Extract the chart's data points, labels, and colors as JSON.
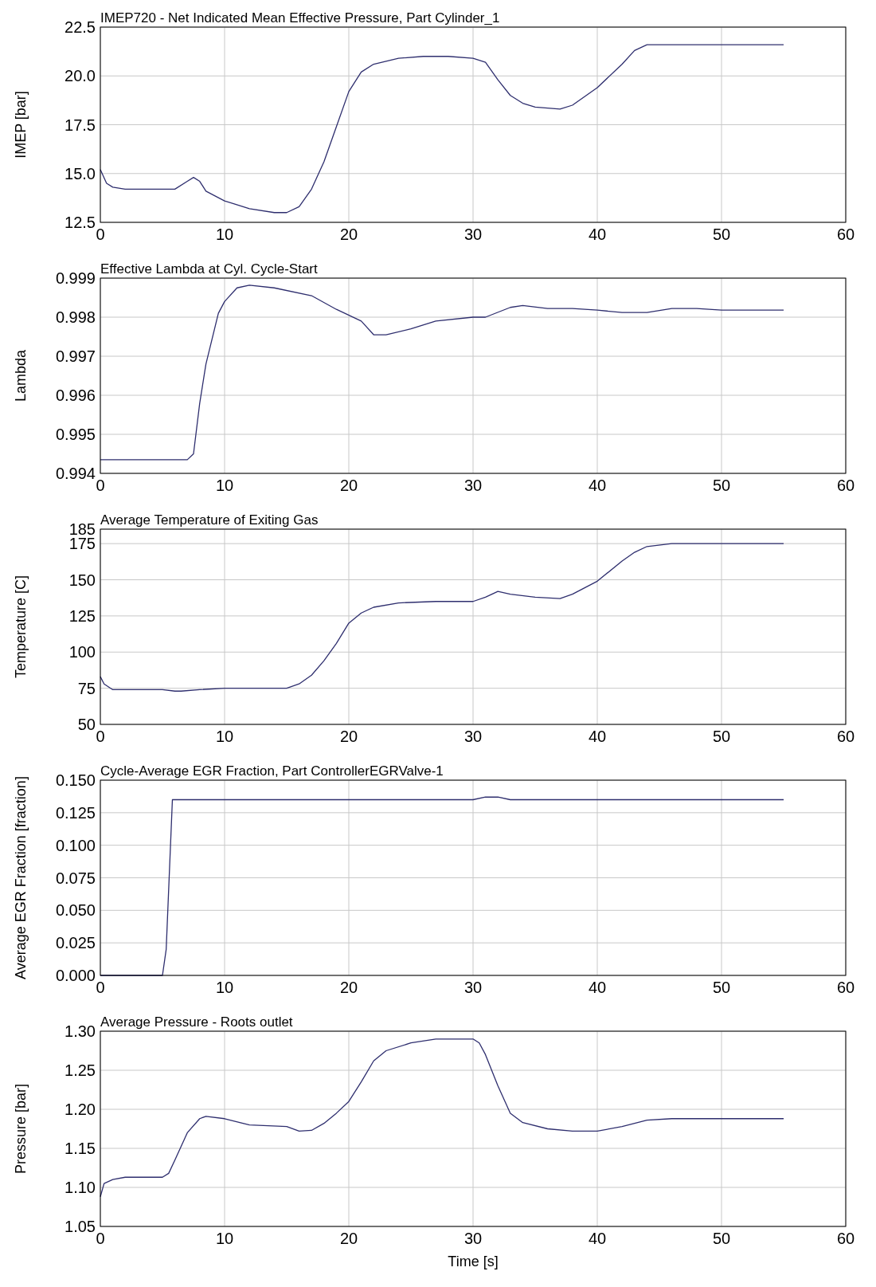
{
  "chart_data": [
    {
      "type": "line",
      "title": "IMEP720 - Net Indicated Mean Effective Pressure, Part Cylinder_1",
      "ylabel": "IMEP [bar]",
      "xlim": [
        0,
        60
      ],
      "xticks": [
        0,
        10,
        20,
        30,
        40,
        50,
        60
      ],
      "ylim": [
        12.5,
        22.5
      ],
      "yticks": [
        {
          "value": 12.5,
          "label": "12.5"
        },
        {
          "value": 15,
          "label": "15.0"
        },
        {
          "value": 17.5,
          "label": "17.5"
        },
        {
          "value": 20,
          "label": "20.0"
        },
        {
          "value": 22.5,
          "label": "22.5"
        }
      ],
      "grid": true,
      "series": [
        {
          "color": "#2e2e6e",
          "x": [
            0,
            0.5,
            1,
            2,
            5,
            6,
            7,
            7.5,
            8,
            8.5,
            10,
            12,
            14,
            15,
            16,
            17,
            18,
            19,
            20,
            21,
            22,
            24,
            26,
            28,
            30,
            31,
            32,
            33,
            34,
            35,
            37,
            38,
            40,
            42,
            43,
            44,
            46,
            50,
            55
          ],
          "values": [
            15.2,
            14.5,
            14.3,
            14.2,
            14.2,
            14.2,
            14.6,
            14.8,
            14.6,
            14.1,
            13.6,
            13.2,
            13.0,
            13.0,
            13.3,
            14.2,
            15.6,
            17.4,
            19.2,
            20.2,
            20.6,
            20.9,
            21.0,
            21.0,
            20.9,
            20.7,
            19.8,
            19.0,
            18.6,
            18.4,
            18.3,
            18.5,
            19.4,
            20.6,
            21.3,
            21.6,
            21.6,
            21.6,
            21.6
          ]
        }
      ]
    },
    {
      "type": "line",
      "title": "Effective Lambda at Cyl. Cycle-Start",
      "ylabel": "Lambda",
      "xlim": [
        0,
        60
      ],
      "xticks": [
        0,
        10,
        20,
        30,
        40,
        50,
        60
      ],
      "ylim": [
        0.994,
        0.999
      ],
      "yticks": [
        0.994,
        0.995,
        0.996,
        0.997,
        0.998,
        0.999
      ],
      "grid": true,
      "series": [
        {
          "color": "#2e2e6e",
          "x": [
            0,
            7,
            7.5,
            8,
            8.5,
            9.5,
            10,
            11,
            12,
            14,
            17,
            19,
            21,
            22,
            23,
            25,
            27,
            30,
            31,
            33,
            34,
            36,
            38,
            40,
            42,
            44,
            46,
            48,
            50,
            55
          ],
          "values": [
            0.99435,
            0.99435,
            0.9945,
            0.9958,
            0.9968,
            0.9981,
            0.9984,
            0.99875,
            0.99882,
            0.99875,
            0.99855,
            0.9982,
            0.9979,
            0.99755,
            0.99755,
            0.9977,
            0.9979,
            0.998,
            0.998,
            0.99825,
            0.9983,
            0.99822,
            0.99822,
            0.99818,
            0.99812,
            0.99812,
            0.99822,
            0.99822,
            0.99818,
            0.99818
          ]
        }
      ]
    },
    {
      "type": "line",
      "title": "Average Temperature of Exiting Gas",
      "ylabel": "Temperature [C]",
      "xlim": [
        0,
        60
      ],
      "xticks": [
        0,
        10,
        20,
        30,
        40,
        50,
        60
      ],
      "ylim": [
        50,
        185
      ],
      "yticks": [
        50,
        75,
        100,
        125,
        150,
        175,
        185
      ],
      "grid": true,
      "series": [
        {
          "color": "#2e2e6e",
          "x": [
            0,
            0.3,
            1,
            5,
            6,
            6.5,
            8,
            10,
            15,
            16,
            17,
            18,
            19,
            20,
            21,
            22,
            24,
            27,
            30,
            31,
            32,
            33,
            35,
            37,
            38,
            40,
            42,
            43,
            44,
            46,
            55
          ],
          "values": [
            83,
            78,
            74,
            74,
            73,
            73,
            74,
            75,
            75,
            78,
            84,
            94,
            106,
            120,
            127,
            131,
            134,
            135,
            135,
            138,
            142,
            140,
            138,
            137,
            140,
            149,
            163,
            169,
            173,
            175,
            175
          ]
        }
      ]
    },
    {
      "type": "line",
      "title": "Cycle-Average EGR Fraction, Part ControllerEGRValve-1",
      "ylabel": "Average EGR Fraction [fraction]",
      "xlim": [
        0,
        60
      ],
      "xticks": [
        0,
        10,
        20,
        30,
        40,
        50,
        60
      ],
      "ylim": [
        0,
        0.15
      ],
      "yticks": [
        {
          "value": 0,
          "label": "0.000"
        },
        {
          "value": 0.025,
          "label": "0.025"
        },
        {
          "value": 0.05,
          "label": "0.050"
        },
        {
          "value": 0.075,
          "label": "0.075"
        },
        {
          "value": 0.1,
          "label": "0.100"
        },
        {
          "value": 0.125,
          "label": "0.125"
        },
        {
          "value": 0.15,
          "label": "0.150"
        }
      ],
      "grid": true,
      "series": [
        {
          "color": "#2e2e6e",
          "x": [
            0,
            5,
            5.3,
            5.8,
            10,
            30,
            31,
            32,
            33,
            55
          ],
          "values": [
            0,
            0,
            0.02,
            0.135,
            0.135,
            0.135,
            0.137,
            0.137,
            0.135,
            0.135
          ]
        }
      ]
    },
    {
      "type": "line",
      "title": "Average Pressure - Roots outlet",
      "ylabel": "Pressure [bar]",
      "xlabel": "Time [s]",
      "xlim": [
        0,
        60
      ],
      "xticks": [
        0,
        10,
        20,
        30,
        40,
        50,
        60
      ],
      "ylim": [
        1.05,
        1.3
      ],
      "yticks": [
        {
          "value": 1.05,
          "label": "1.05"
        },
        {
          "value": 1.1,
          "label": "1.10"
        },
        {
          "value": 1.15,
          "label": "1.15"
        },
        {
          "value": 1.2,
          "label": "1.20"
        },
        {
          "value": 1.25,
          "label": "1.25"
        },
        {
          "value": 1.3,
          "label": "1.30"
        }
      ],
      "grid": true,
      "series": [
        {
          "color": "#2e2e6e",
          "x": [
            0,
            0.3,
            1,
            2,
            5,
            5.5,
            6,
            7,
            8,
            8.5,
            10,
            12,
            15,
            16,
            17,
            18,
            19,
            20,
            21,
            22,
            23,
            25,
            27,
            30,
            30.5,
            31,
            32,
            33,
            34,
            36,
            38,
            40,
            42,
            44,
            46,
            55
          ],
          "values": [
            1.088,
            1.105,
            1.11,
            1.113,
            1.113,
            1.118,
            1.135,
            1.17,
            1.188,
            1.191,
            1.188,
            1.18,
            1.178,
            1.172,
            1.173,
            1.182,
            1.195,
            1.21,
            1.235,
            1.262,
            1.275,
            1.285,
            1.29,
            1.29,
            1.285,
            1.27,
            1.23,
            1.195,
            1.183,
            1.175,
            1.172,
            1.172,
            1.178,
            1.186,
            1.188,
            1.188
          ]
        }
      ]
    }
  ]
}
